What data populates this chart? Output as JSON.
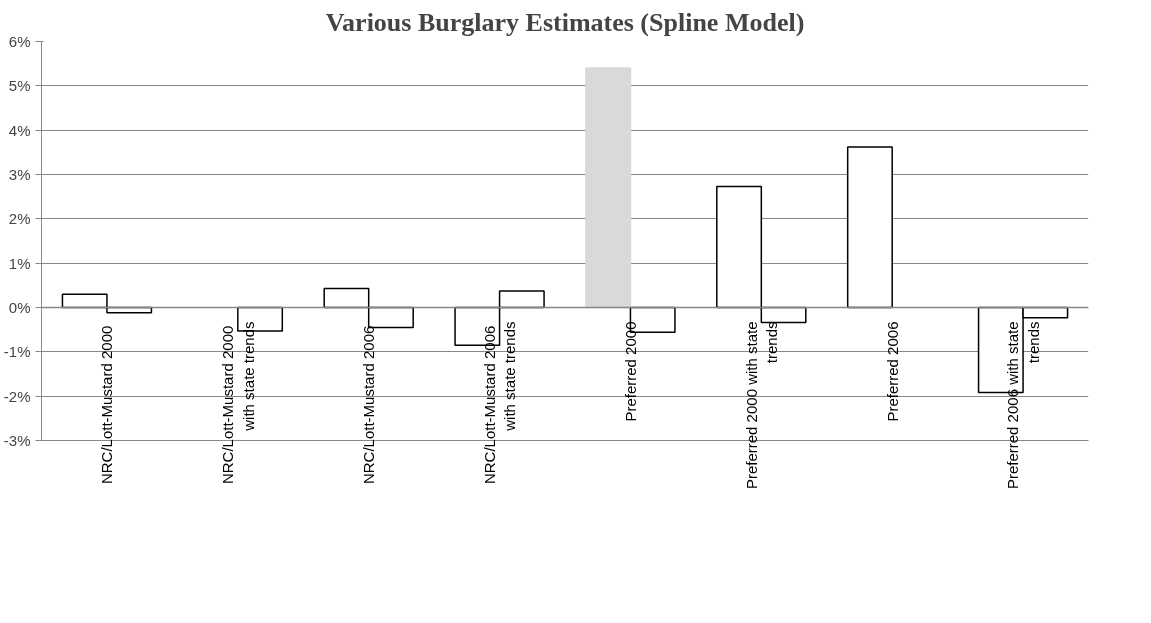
{
  "chart_data": {
    "type": "bar",
    "title": "Various Burglary Estimates (Spline Model)",
    "categories": [
      "NRC/Lott-Mustard  2000",
      "NRC/Lott-Mustard  2000 with state trends",
      "NRC/Lott-Mustard  2006",
      "NRC/Lott-Mustard  2006 with state trends",
      "Preferred 2000",
      "Preferred 2000 with state trends",
      "Preferred 2006",
      "Preferred 2006 with state trends"
    ],
    "series": [
      {
        "colors": [
          "#ffffff",
          "#ffffff",
          "#ffffff",
          "#ffffff",
          "#d9d9d9",
          "#ffffff",
          "#ffffff",
          "#ffffff"
        ],
        "values": [
          0.3,
          null,
          0.43,
          -0.85,
          5.4,
          2.73,
          3.62,
          -1.92
        ]
      },
      {
        "color": "#ffffff",
        "values": [
          -0.12,
          -0.53,
          -0.45,
          0.37,
          -0.56,
          -0.34,
          null,
          -0.23
        ]
      }
    ],
    "ylim": [
      -3,
      6
    ],
    "yticks": [
      {
        "value": -3,
        "label": "-3%"
      },
      {
        "value": -2,
        "label": "-2%"
      },
      {
        "value": -1,
        "label": "-1%"
      },
      {
        "value": 0,
        "label": "0%"
      },
      {
        "value": 1,
        "label": "1%"
      },
      {
        "value": 2,
        "label": "2%"
      },
      {
        "value": 3,
        "label": "3%"
      },
      {
        "value": 4,
        "label": "4%"
      },
      {
        "value": 5,
        "label": "5%"
      },
      {
        "value": 6,
        "label": "6%"
      }
    ],
    "grid": "y"
  }
}
